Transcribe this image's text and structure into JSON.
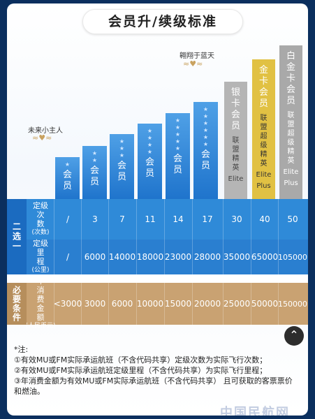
{
  "title": "会员升/续级标准",
  "wing_left": "未来小主人",
  "wing_right": "翱翔于蓝天",
  "blue_tiers": [
    "会员",
    "会员",
    "会员",
    "会员",
    "会员",
    "会员"
  ],
  "blue_stars": [
    1,
    2,
    3,
    4,
    5,
    6
  ],
  "elite": [
    {
      "name": "银卡会员",
      "sub": "联盟精英",
      "en": "Elite",
      "color": "#b5b5b5"
    },
    {
      "name": "金卡会员",
      "sub": "联盟超级精英",
      "en": "Elite Plus",
      "color": "#e1c143"
    },
    {
      "name": "白金卡会员",
      "sub": "联盟超级精英",
      "en": "Elite Plus",
      "color": "#a9a9a9"
    }
  ],
  "either_one": "二选一",
  "row1": {
    "label": "定级次数",
    "unit": "(次数)",
    "values": [
      "/",
      "3",
      "7",
      "11",
      "14",
      "17",
      "30",
      "40",
      "50"
    ]
  },
  "row2": {
    "label": "定级里程",
    "unit": "(公里)",
    "values": [
      "/",
      "6000",
      "14000",
      "18000",
      "23000",
      "28000",
      "35000",
      "65000",
      "105000"
    ]
  },
  "required": "必要条件",
  "row3": {
    "label": "年消费金额",
    "unit": "(人民币元)",
    "values": [
      "<3000",
      "3000",
      "6000",
      "10000",
      "15000",
      "20000",
      "25000",
      "50000",
      "150000"
    ]
  },
  "notes_title": "*注:",
  "notes": [
    "①有效MU或FM实际承运航班（不含代码共享）定级次数为实际飞行次数；",
    "②有效MU或FM实际承运航班定级里程（不含代码共享）为实际飞行里程；",
    "③年消费金额为有效MU或FM实际承运航班（不含代码共享）   且可获取的客票票价",
    "和燃油。"
  ],
  "watermark": "中国民航网",
  "colors": {
    "blue": "#2a82d6",
    "blue_dark": "#1c6fc4",
    "gold_band": "#c8a373"
  }
}
